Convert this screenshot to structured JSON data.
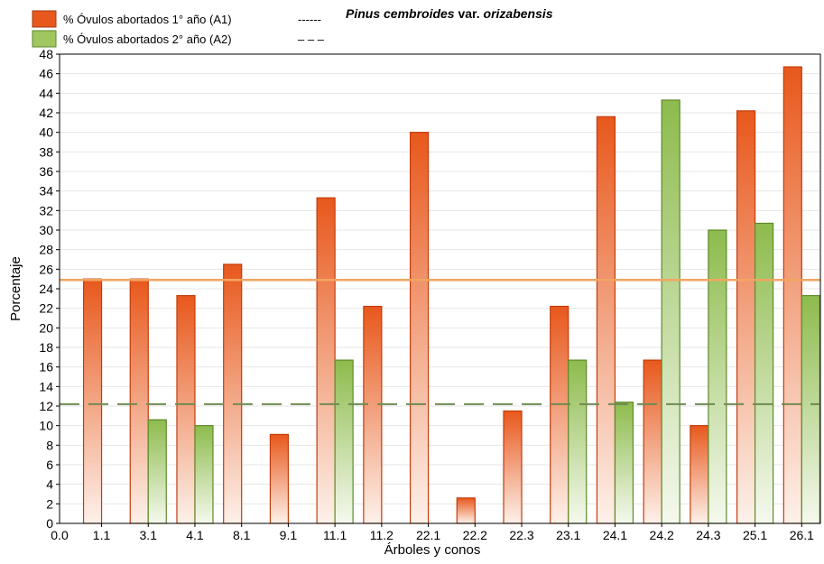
{
  "chart_data": {
    "type": "bar",
    "title_italic": "Pinus cembroides",
    "title_rest": " var. ",
    "title_italic2": "orizabensis",
    "xlabel": "Árboles y conos",
    "ylabel": "Porcentaje",
    "ylim": [
      0,
      48
    ],
    "ytick_step": 2,
    "origin_label": "0.0",
    "grid": true,
    "legend_position": "top-left",
    "categories": [
      "1.1",
      "3.1",
      "4.1",
      "8.1",
      "9.1",
      "11.1",
      "11.2",
      "22.1",
      "22.2",
      "22.3",
      "23.1",
      "24.1",
      "24.2",
      "24.3",
      "25.1",
      "26.1"
    ],
    "series": [
      {
        "name": "% Óvulos abortados 1° año (A1)",
        "legend_line": "------",
        "color": "#e8581c",
        "values": [
          25.0,
          25.0,
          23.3,
          26.5,
          9.1,
          33.3,
          22.2,
          40.0,
          2.6,
          11.5,
          22.2,
          41.6,
          16.7,
          10.0,
          42.2,
          46.7
        ]
      },
      {
        "name": "% Óvulos abortados 2° año (A2)",
        "legend_line": "– – –",
        "color": "#8dbb4c",
        "values": [
          null,
          10.6,
          10.0,
          null,
          null,
          16.7,
          null,
          null,
          null,
          null,
          16.7,
          12.4,
          43.3,
          30.0,
          30.7,
          23.3
        ]
      }
    ],
    "reference_lines": [
      {
        "series": "A1",
        "value": 24.9,
        "style": "solid",
        "color": "#f2a561"
      },
      {
        "series": "A2",
        "value": 12.2,
        "style": "dashed",
        "color": "#6f8a52"
      }
    ]
  }
}
